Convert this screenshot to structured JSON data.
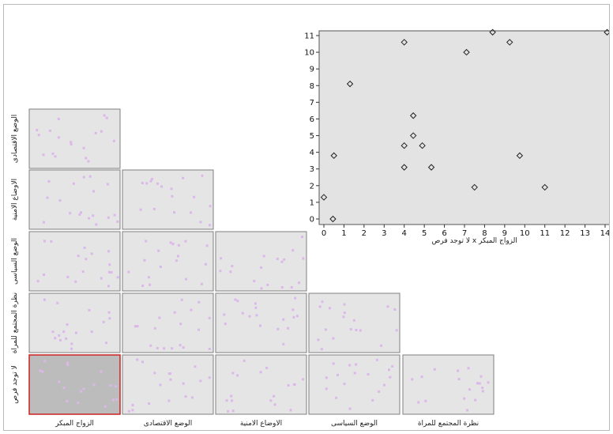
{
  "chart_data": [
    {
      "type": "scatter",
      "title": "",
      "xlabel": "لا توجد فرص x الزواج المبكر",
      "ylabel": "",
      "xlim": [
        0,
        14
      ],
      "ylim": [
        0,
        11
      ],
      "x_ticks": [
        "0",
        "1",
        "2",
        "3",
        "4",
        "5",
        "6",
        "7",
        "8",
        "9",
        "10",
        "11",
        "12",
        "13",
        "14"
      ],
      "y_ticks": [
        "0",
        "1",
        "2",
        "3",
        "4",
        "5",
        "6",
        "7",
        "8",
        "9",
        "10",
        "11"
      ],
      "points": [
        {
          "x": 0.0,
          "y": 1.3
        },
        {
          "x": 0.45,
          "y": 0.0
        },
        {
          "x": 0.5,
          "y": 3.8
        },
        {
          "x": 1.3,
          "y": 8.1
        },
        {
          "x": 4.0,
          "y": 10.6
        },
        {
          "x": 4.0,
          "y": 4.4
        },
        {
          "x": 4.0,
          "y": 3.1
        },
        {
          "x": 4.45,
          "y": 6.2
        },
        {
          "x": 4.45,
          "y": 5.0
        },
        {
          "x": 4.9,
          "y": 4.4
        },
        {
          "x": 5.35,
          "y": 3.1
        },
        {
          "x": 7.1,
          "y": 10.0
        },
        {
          "x": 7.5,
          "y": 1.9
        },
        {
          "x": 8.4,
          "y": 11.2
        },
        {
          "x": 9.25,
          "y": 10.6
        },
        {
          "x": 9.75,
          "y": 3.8
        },
        {
          "x": 11.0,
          "y": 1.9
        },
        {
          "x": 14.1,
          "y": 11.2
        }
      ]
    },
    {
      "type": "scatter",
      "subtype": "scatterplot-matrix",
      "variables": [
        "الزواج المبكر",
        "الوضع الاقتصادى",
        "الاوضاع الامنية",
        "الوضع السياسى",
        "نظرة المجتمع للمراة",
        "لا توجد فرص"
      ],
      "row_labels": [
        "الوضع الاقتصادى",
        "الاوضاع الامنية",
        "الوضع السياسى",
        "نظرة المجتمع للمراة",
        "لا توجد فرص"
      ],
      "column_labels": [
        "الزواج المبكر",
        "الوضع الاقتصادى",
        "الاوضاع الامنية",
        "الوضع السياسى",
        "نظرة المجتمع للمراة"
      ],
      "selected_cell": {
        "row": "لا توجد فرص",
        "column": "الزواج المبكر"
      },
      "point_color": "#dcb7ea",
      "selected_border_color": "#cc2222"
    }
  ]
}
